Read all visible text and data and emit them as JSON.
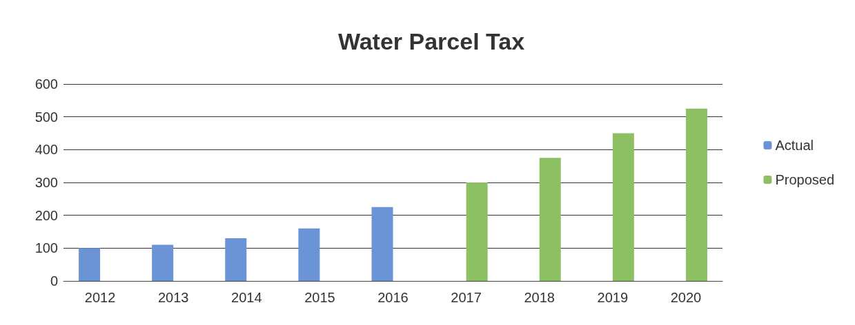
{
  "chart_data": {
    "type": "bar",
    "title": "Water Parcel Tax",
    "categories": [
      "2012",
      "2013",
      "2014",
      "2015",
      "2016",
      "2017",
      "2018",
      "2019",
      "2020"
    ],
    "series": [
      {
        "name": "Actual",
        "color": "#6b94d6",
        "values": [
          100,
          110,
          130,
          160,
          225,
          null,
          null,
          null,
          null
        ]
      },
      {
        "name": "Proposed",
        "color": "#8dc063",
        "values": [
          null,
          null,
          null,
          null,
          null,
          300,
          375,
          450,
          525
        ]
      }
    ],
    "ylim": [
      0,
      600
    ],
    "yticks": [
      0,
      100,
      200,
      300,
      400,
      500,
      600
    ],
    "grid": "y",
    "legend": "right"
  }
}
